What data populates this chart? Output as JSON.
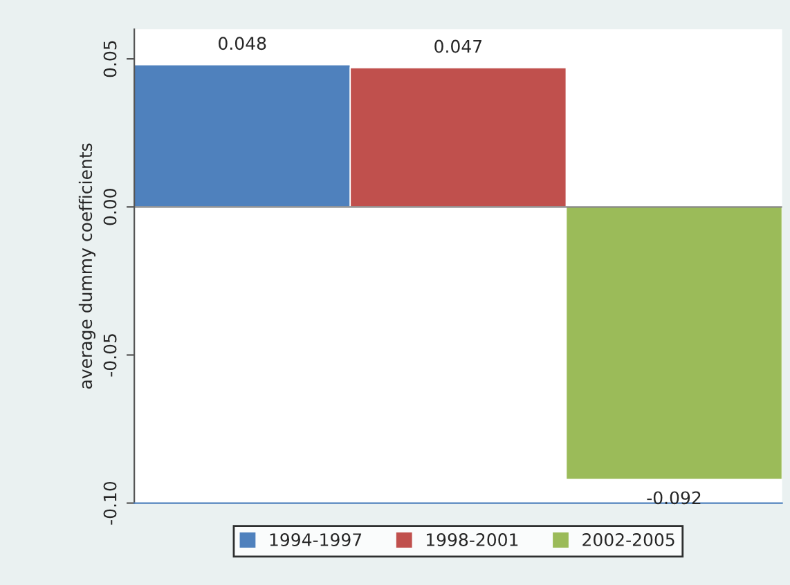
{
  "chart_data": {
    "type": "bar",
    "ylabel": "average dummy coefficients",
    "categories": [
      null,
      null,
      null
    ],
    "series": [
      {
        "name": "1994-1997",
        "color": "#4f81bd",
        "values": [
          0.048,
          null,
          null
        ]
      },
      {
        "name": "1998-2001",
        "color": "#c0504d",
        "values": [
          null,
          0.047,
          null
        ]
      },
      {
        "name": "2002-2005",
        "color": "#9bbb59",
        "values": [
          null,
          null,
          -0.092
        ]
      }
    ],
    "data_labels": true,
    "ref_lines": [
      {
        "axis": "y",
        "value": 0,
        "color": "#888888"
      }
    ],
    "ylim": [
      -0.1,
      0.06
    ],
    "yticks": [
      {
        "value": -0.1,
        "label": "-0.10"
      },
      {
        "value": -0.05,
        "label": "-0.05"
      },
      {
        "value": 0,
        "label": "0.00"
      },
      {
        "value": 0.05,
        "label": "0.05"
      }
    ],
    "grid": false,
    "legend": "bottom"
  }
}
